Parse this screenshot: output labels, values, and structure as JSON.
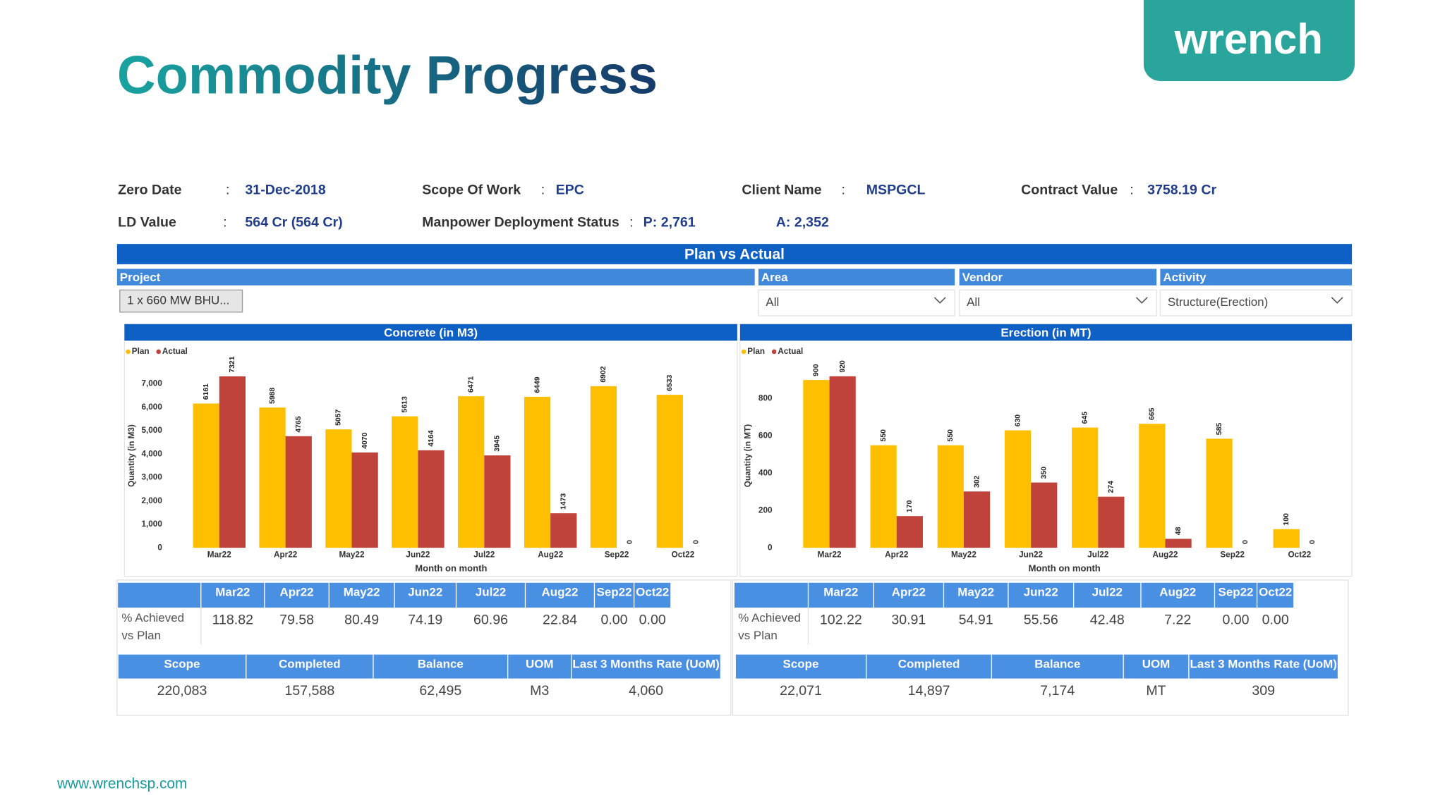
{
  "header": {
    "title": "Commodity Progress",
    "logo": "wrench"
  },
  "info": {
    "separator": ":",
    "fields": [
      {
        "label": "Zero Date",
        "value": "31-Dec-2018"
      },
      {
        "label": "Scope Of Work",
        "value": "EPC"
      },
      {
        "label": "Client Name",
        "value": "MSPGCL"
      },
      {
        "label": "Contract Value",
        "value": "3758.19 Cr"
      },
      {
        "label": "LD Value",
        "value": "564 Cr (564 Cr)"
      },
      {
        "label": "Manpower Deployment Status",
        "value": "P: 2,761",
        "extra": "A: 2,352"
      }
    ]
  },
  "banner": "Plan vs Actual",
  "filters": [
    {
      "label": "Project",
      "value": "1 x 660 MW BHU..."
    },
    {
      "label": "Area",
      "value": "All"
    },
    {
      "label": "Vendor",
      "value": "All"
    },
    {
      "label": "Activity",
      "value": "Structure(Erection)"
    }
  ],
  "chart_data": [
    {
      "type": "bar",
      "title": "Concrete (in M3)",
      "y_label": "Quantity (in M3)",
      "x_label": "Month on month",
      "categories": [
        "Mar22",
        "Apr22",
        "May22",
        "Jun22",
        "Jul22",
        "Aug22",
        "Sep22",
        "Oct22"
      ],
      "series": [
        {
          "name": "Plan",
          "color": "#fdbf00",
          "values": [
            6161,
            5988,
            5057,
            5613,
            6471,
            6449,
            6902,
            6533
          ]
        },
        {
          "name": "Actual",
          "color": "#c0433b",
          "values": [
            7321,
            4765,
            4070,
            4164,
            3945,
            1473,
            0,
            0
          ]
        }
      ],
      "ylim": [
        0,
        7800
      ],
      "yticks": [
        0,
        {
          "value": 1000,
          "label": "1,000"
        },
        {
          "value": 2000,
          "label": "2,000"
        },
        {
          "value": 3000,
          "label": "3,000"
        },
        {
          "value": 4000,
          "label": "4,000"
        },
        {
          "value": 5000,
          "label": "5,000"
        },
        {
          "value": 6000,
          "label": "6,000"
        },
        {
          "value": 7000,
          "label": "7,000"
        }
      ],
      "legend": "top-left",
      "achieved_label": [
        "% Achieved",
        "vs Plan"
      ],
      "achieved": [
        "118.82",
        "79.58",
        "80.49",
        "74.19",
        "60.96",
        "22.84",
        "0.00",
        "0.00"
      ],
      "summary": {
        "headers": [
          "Scope",
          "Completed",
          "Balance",
          "UOM",
          "Last 3 Months Rate (UoM)"
        ],
        "values": [
          "220,083",
          "157,588",
          "62,495",
          "M3",
          "4,060"
        ]
      }
    },
    {
      "type": "bar",
      "title": "Erection (in MT)",
      "y_label": "Quantity (in MT)",
      "x_label": "Month on month",
      "categories": [
        "Mar22",
        "Apr22",
        "May22",
        "Jun22",
        "Jul22",
        "Aug22",
        "Sep22",
        "Oct22"
      ],
      "series": [
        {
          "name": "Plan",
          "color": "#fdbf00",
          "values": [
            900,
            550,
            550,
            630,
            645,
            665,
            585,
            100
          ]
        },
        {
          "name": "Actual",
          "color": "#c0433b",
          "values": [
            920,
            170,
            302,
            350,
            274,
            48,
            0,
            0
          ]
        }
      ],
      "ylim": [
        0,
        1000
      ],
      "yticks": [
        0,
        200,
        400,
        600,
        800
      ],
      "legend": "top-left",
      "achieved_label": [
        "% Achieved",
        "vs Plan"
      ],
      "achieved": [
        "102.22",
        "30.91",
        "54.91",
        "55.56",
        "42.48",
        "7.22",
        "0.00",
        "0.00"
      ],
      "summary": {
        "headers": [
          "Scope",
          "Completed",
          "Balance",
          "UOM",
          "Last 3 Months Rate (UoM)"
        ],
        "values": [
          "22,071",
          "14,897",
          "7,174",
          "MT",
          "309"
        ]
      }
    }
  ],
  "footer": "www.wrenchsp.com"
}
